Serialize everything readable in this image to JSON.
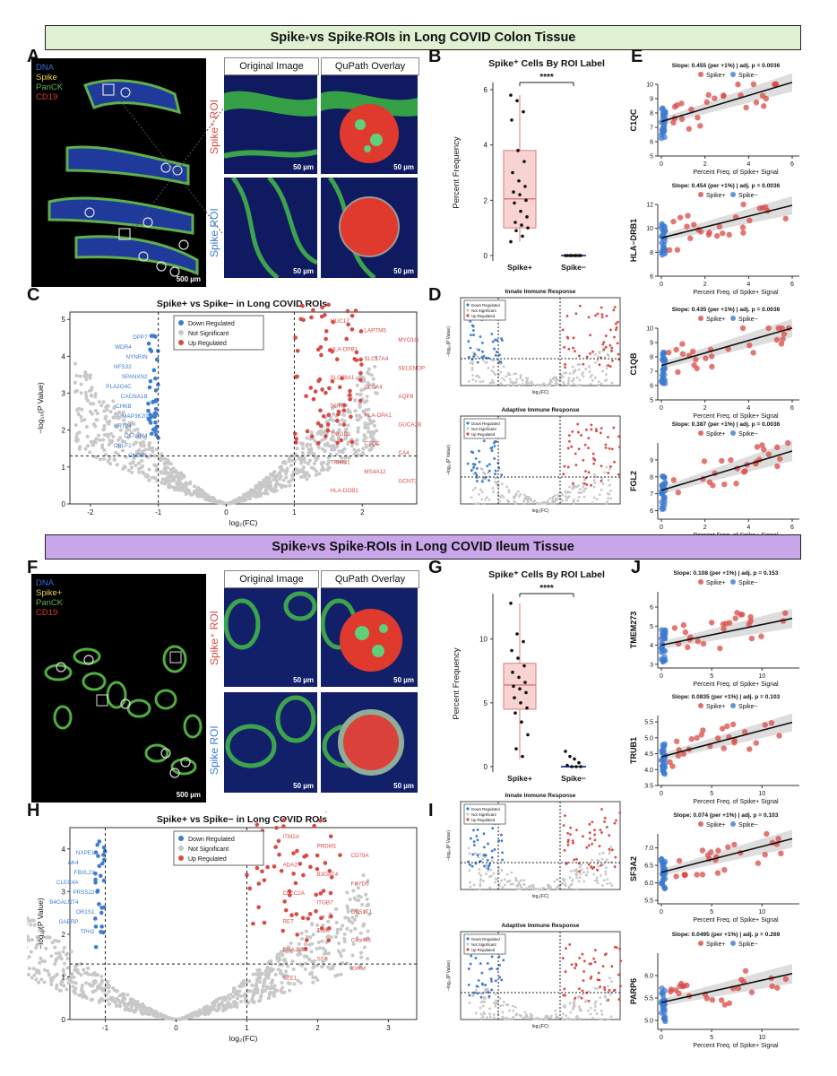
{
  "banner_top": {
    "pre": "Spike",
    "sup1": "+",
    "mid": " vs Spike",
    "sup2": "-",
    "post": " ROIs in Long COVID Colon Tissue",
    "color": "#dff0d3"
  },
  "banner_bottom": {
    "pre": "Spike",
    "sup1": "+",
    "mid": " vs Spike",
    "sup2": "-",
    "post": " ROIs in Long COVID Ileum Tissue",
    "color": "#c9a6ea"
  },
  "panel_letters": {
    "A": "A",
    "B": "B",
    "C": "C",
    "D": "D",
    "E": "E",
    "F": "F",
    "G": "G",
    "H": "H",
    "I": "I",
    "J": "J"
  },
  "colon_legend": [
    {
      "text": "DNA",
      "color": "#3a6bd8"
    },
    {
      "text": "Spike",
      "color": "#e8d34a"
    },
    {
      "text": "PanCK",
      "color": "#63b34a"
    },
    {
      "text": "CD19",
      "color": "#e03a2e"
    }
  ],
  "ileum_legend": [
    {
      "text": "DNA",
      "color": "#3a6bd8"
    },
    {
      "text": "Spike+",
      "color": "#e8d34a"
    },
    {
      "text": "PanCK",
      "color": "#63b34a"
    },
    {
      "text": "CD19",
      "color": "#e03a2e"
    }
  ],
  "tile_headers": {
    "original": "Original Image",
    "overlay": "QuPath Overlay"
  },
  "roi_labels": {
    "pos": "Spike⁺ ROI",
    "neg": "Spike ROI"
  },
  "scalebars": {
    "small": "50 µm",
    "large": "500 µm"
  },
  "boxplots": [
    {
      "title": "Spike⁺ Cells By ROI Label",
      "ylabel": "Percent Frequency",
      "sig": "****",
      "categories": [
        "Spike+",
        "Spike−"
      ],
      "ylim": [
        0,
        6
      ],
      "ticks": [
        "0",
        "2",
        "4",
        "6"
      ],
      "box_pos": {
        "q1": 1.0,
        "median": 2.05,
        "q3": 3.8,
        "lo": 0.5,
        "hi": 5.8
      },
      "pos_points": [
        5.8,
        5.6,
        5.2,
        4.9,
        3.8,
        3.4,
        3.0,
        2.7,
        2.5,
        2.3,
        2.2,
        2.0,
        1.9,
        1.6,
        1.4,
        1.2,
        1.1,
        1.0,
        0.9,
        0.7,
        0.5
      ],
      "neg_points": [
        0,
        0,
        0,
        0,
        0,
        0,
        0,
        0
      ]
    },
    {
      "title": "Spike⁺ Cells By ROI Label",
      "ylabel": "Percent Frequency",
      "sig": "****",
      "categories": [
        "Spike+",
        "Spike−"
      ],
      "ylim": [
        0,
        13
      ],
      "ticks": [
        "0",
        "5",
        "10"
      ],
      "box_pos": {
        "q1": 4.5,
        "median": 6.4,
        "q3": 8.1,
        "lo": 0.6,
        "hi": 12.8
      },
      "pos_points": [
        12.8,
        10.4,
        9.8,
        9.1,
        8.5,
        7.9,
        7.4,
        7.0,
        6.6,
        6.3,
        6.1,
        5.8,
        5.4,
        5.0,
        4.6,
        4.2,
        3.5,
        2.5,
        1.4,
        0.8
      ],
      "neg_points": [
        1.2,
        0.8,
        0.6,
        0.3,
        0.1,
        0,
        0,
        0
      ]
    }
  ],
  "volcano_C": {
    "title": "Spike+ vs Spike− in Long COVID ROIs",
    "xlabel": "log₂(FC)",
    "ylabel": "−log₁₀(P Value)",
    "legend": [
      "Down Regulated",
      "Not Significant",
      "Up Regulated"
    ],
    "xticks": [
      "-2",
      "-1",
      "0",
      "1",
      "2"
    ],
    "yticks": [
      "0",
      "1",
      "2",
      "3",
      "4",
      "5"
    ],
    "down_genes": [
      "DPP7",
      "WDR4",
      "NYNRIN",
      "NFS32",
      "SPANXN2",
      "PLA2G4C",
      "CACNA1B",
      "CHKB",
      "MAP3K20",
      "KRT24",
      "C17orf64",
      "CRLF1",
      "CNGB1"
    ],
    "up_genes": [
      "MUC17",
      "LAPTM5",
      "MYO1G",
      "HLA-DPB1",
      "SLC17A4",
      "SELENOP",
      "SLC38A1",
      "CLCA4",
      "AQP8",
      "SGK1",
      "HLA-DPA1",
      "GUCA2B",
      "TNIGD1",
      "C1QC",
      "CA4",
      "TRIM31",
      "MS4A12",
      "GCNT3",
      "HLA-DOB1"
    ]
  },
  "volcano_D": [
    {
      "title": "Innate Immune Response",
      "xlabel": "log₂(FC)",
      "ylabel": "−log₁₀(P Value)",
      "legend": [
        "Down Regulated",
        "Not Significant",
        "Up Regulated"
      ]
    },
    {
      "title": "Adaptive Immune Response",
      "xlabel": "log₂(FC)",
      "ylabel": "−log₁₀(P Value)",
      "legend": [
        "Down Regulated",
        "Not Significant",
        "Up Regulated"
      ]
    }
  ],
  "volcano_H": {
    "title": "Spike+ vs Spike− in Long COVID ROIs",
    "xlabel": "log₂(FC)",
    "ylabel": "−log₁₀(P Value)",
    "legend": [
      "Down Regulated",
      "Not Significant",
      "Up Regulated"
    ],
    "xticks": [
      "-1",
      "0",
      "1",
      "2",
      "3"
    ],
    "yticks": [
      "0",
      "1",
      "2",
      "3",
      "4"
    ],
    "down_genes": [
      "NXPE1",
      "AK4",
      "FBXL22",
      "CLEC4A",
      "PRSS22",
      "B4GALNT4",
      "OR1S1",
      "GABRP",
      "TPH2"
    ],
    "up_genes": [
      "ITM2A",
      "PRDM1",
      "CD79A",
      "ADA2",
      "B3GAT4",
      "FXYD6",
      "CLEC2A",
      "ITGB7",
      "OR51T1",
      "RET",
      "TNIK",
      "C4orf46",
      "DNAJB13",
      "SST",
      "IGHM",
      "SZE1"
    ]
  },
  "volcano_I": [
    {
      "title": "Innate Immune Response",
      "xlabel": "log₂(FC)",
      "ylabel": "−log₁₀(P Value)",
      "legend": [
        "Down Regulated",
        "Not Significant",
        "Up Regulated"
      ]
    },
    {
      "title": "Adaptive Immune Response",
      "xlabel": "log₂(FC)",
      "ylabel": "−log₁₀(P Value)",
      "legend": [
        "Down Regulated",
        "Not Significant",
        "Up Regulated"
      ]
    }
  ],
  "scatter_legend": {
    "pos": "Spike+",
    "neg": "Spike−"
  },
  "scatter_xlabel": "Percent Freq. of Spike+ Signal",
  "scatter_E": [
    {
      "title": "Slope: 0.455 (per +1%) | adj. p = 0.0036",
      "gene": "C1QC",
      "xmax": 6,
      "yrange": [
        5,
        10
      ],
      "yticks": [
        "5",
        "6",
        "7",
        "8",
        "9",
        "10"
      ],
      "xticks": [
        "0",
        "2",
        "4",
        "6"
      ],
      "intercept": 7.4,
      "slope": 0.455
    },
    {
      "title": "Slope: 0.454 (per +1%) | adj. p = 0.0036",
      "gene": "HLA−DRB1",
      "xmax": 6,
      "yrange": [
        6,
        12
      ],
      "yticks": [
        "6",
        "8",
        "10",
        "12"
      ],
      "xticks": [
        "0",
        "2",
        "4",
        "6"
      ],
      "intercept": 9.2,
      "slope": 0.454
    },
    {
      "title": "Slope: 0.435 (per +1%) | adj. p = 0.0036",
      "gene": "C1QB",
      "xmax": 6,
      "yrange": [
        5,
        10
      ],
      "yticks": [
        "5",
        "6",
        "7",
        "8",
        "9",
        "10"
      ],
      "xticks": [
        "0",
        "2",
        "4",
        "6"
      ],
      "intercept": 7.4,
      "slope": 0.435
    },
    {
      "title": "Slope: 0.387 (per +1%) | adj. p = 0.0036",
      "gene": "FGL2",
      "xmax": 6,
      "yrange": [
        5.5,
        10
      ],
      "yticks": [
        "6",
        "7",
        "8",
        "9"
      ],
      "xticks": [
        "0",
        "2",
        "4",
        "6"
      ],
      "intercept": 7.2,
      "slope": 0.387
    }
  ],
  "scatter_J": [
    {
      "title": "Slope: 0.108 (per +1%) | adj. p = 0.153",
      "gene": "TMEM273",
      "xmax": 13,
      "yrange": [
        2.8,
        6.8
      ],
      "yticks": [
        "3",
        "4",
        "5",
        "6"
      ],
      "xticks": [
        "0",
        "5",
        "10"
      ],
      "intercept": 4.0,
      "slope": 0.108
    },
    {
      "title": "Slope: 0.0835 (per +1%) | adj. p = 0.103",
      "gene": "TRUB1",
      "xmax": 13,
      "yrange": [
        3.5,
        5.7
      ],
      "yticks": [
        "3.5",
        "4.0",
        "4.5",
        "5.0",
        "5.5"
      ],
      "xticks": [
        "0",
        "5",
        "10"
      ],
      "intercept": 4.4,
      "slope": 0.0835
    },
    {
      "title": "Slope: 0.074 (per +1%) | adj. p = 0.103",
      "gene": "SF3A2",
      "xmax": 13,
      "yrange": [
        5.4,
        7.4
      ],
      "yticks": [
        "5.5",
        "6.0",
        "6.5",
        "7.0"
      ],
      "xticks": [
        "0",
        "5",
        "10"
      ],
      "intercept": 6.3,
      "slope": 0.074
    },
    {
      "title": "Slope: 0.0495 (per +1%) | adj. p = 0.269",
      "gene": "PARP6",
      "xmax": 13,
      "yrange": [
        4.8,
        6.5
      ],
      "yticks": [
        "5.0",
        "5.5",
        "6.0"
      ],
      "xticks": [
        "0",
        "5",
        "10"
      ],
      "intercept": 5.4,
      "slope": 0.0495
    }
  ],
  "colors": {
    "down": "#3d7bd0",
    "up": "#d94a45",
    "ns": "#c8c8c8",
    "box_fill": "#f7d4d2",
    "box_line": "#d97e78",
    "neg_med": "#2f54a8"
  }
}
